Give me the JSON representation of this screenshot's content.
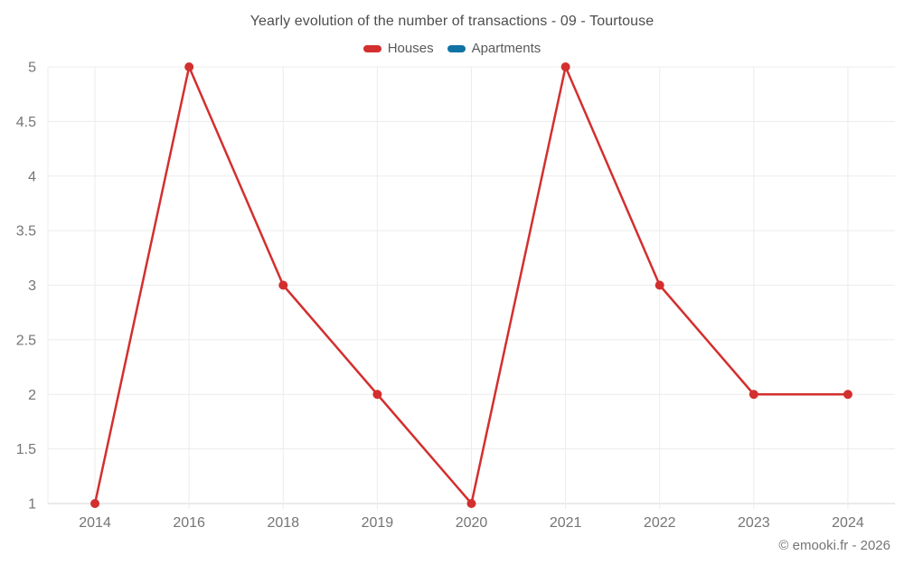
{
  "header": {
    "title": "Yearly evolution of the number of transactions - 09 - Tourtouse"
  },
  "legend": {
    "items": [
      {
        "label": "Houses",
        "color": "#d32f2f"
      },
      {
        "label": "Apartments",
        "color": "#1173a4"
      }
    ]
  },
  "footer": {
    "credit": "© emooki.fr - 2026"
  },
  "chart_data": {
    "type": "line",
    "title": "Yearly evolution of the number of transactions - 09 - Tourtouse",
    "categories": [
      "2014",
      "2016",
      "2018",
      "2019",
      "2020",
      "2021",
      "2022",
      "2023",
      "2024"
    ],
    "series": [
      {
        "name": "Houses",
        "color": "#d32f2f",
        "marker": "circle",
        "values": [
          1,
          5,
          3,
          2,
          1,
          5,
          3,
          2,
          2
        ]
      },
      {
        "name": "Apartments",
        "color": "#1173a4",
        "marker": "circle",
        "values": []
      }
    ],
    "xlabel": "",
    "ylabel": "",
    "ylim": [
      1,
      5
    ],
    "ytick_step": 0.5,
    "grid": true,
    "legend_position": "top",
    "grid_color": "#ececec",
    "axis_color": "#d4d4d4",
    "tick_label_color": "#757575"
  }
}
